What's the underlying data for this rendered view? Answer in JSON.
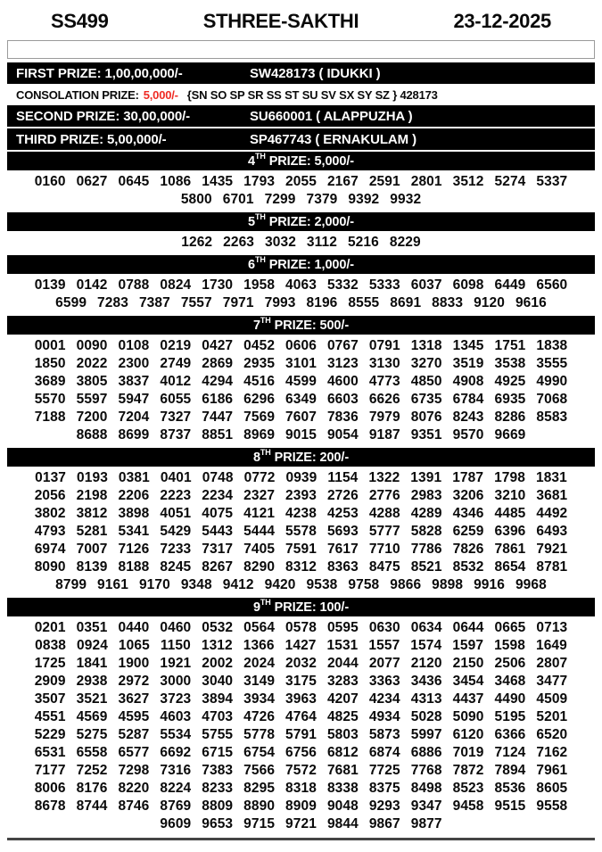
{
  "header": {
    "draw_code": "SS499",
    "title": "STHREE-SAKTHI",
    "date": "23-12-2025"
  },
  "blank_field": {
    "value": ""
  },
  "colors": {
    "bar_background": "#000000",
    "bar_text": "#ffffff",
    "consolation_amount_red": "#ef2b24"
  },
  "top_prizes": [
    {
      "label": "FIRST PRIZE: 1,00,00,000/-",
      "winner": "SW428173 ( IDUKKI )"
    },
    {
      "label": "SECOND PRIZE: 30,00,000/-",
      "winner": "SU660001 ( ALAPPUZHA )"
    },
    {
      "label": "THIRD PRIZE: 5,00,000/-",
      "winner": "SP467743 ( ERNAKULAM )"
    }
  ],
  "consolation": {
    "label": "CONSOLATION PRIZE:",
    "amount": "5,000/-",
    "series": "{SN SO SP SR SS ST SU SV SX SY SZ } 428173"
  },
  "sections": [
    {
      "ordinal": "4",
      "suffix": "TH",
      "rest": " PRIZE: 5,000/-",
      "rows": [
        [
          "0160",
          "0627",
          "0645",
          "1086",
          "1435",
          "1793",
          "2055",
          "2167",
          "2591",
          "2801",
          "3512",
          "5274",
          "5337"
        ],
        [
          "5800",
          "6701",
          "7299",
          "7379",
          "9392",
          "9932"
        ]
      ]
    },
    {
      "ordinal": "5",
      "suffix": "TH",
      "rest": " PRIZE: 2,000/-",
      "rows": [
        [
          "1262",
          "2263",
          "3032",
          "3112",
          "5216",
          "8229"
        ]
      ]
    },
    {
      "ordinal": "6",
      "suffix": "TH",
      "rest": " PRIZE: 1,000/-",
      "rows": [
        [
          "0139",
          "0142",
          "0788",
          "0824",
          "1730",
          "1958",
          "4063",
          "5332",
          "5333",
          "6037",
          "6098",
          "6449",
          "6560"
        ],
        [
          "6599",
          "7283",
          "7387",
          "7557",
          "7971",
          "7993",
          "8196",
          "8555",
          "8691",
          "8833",
          "9120",
          "9616"
        ]
      ]
    },
    {
      "ordinal": "7",
      "suffix": "TH",
      "rest": " PRIZE: 500/-",
      "rows": [
        [
          "0001",
          "0090",
          "0108",
          "0219",
          "0427",
          "0452",
          "0606",
          "0767",
          "0791",
          "1318",
          "1345",
          "1751",
          "1838"
        ],
        [
          "1850",
          "2022",
          "2300",
          "2749",
          "2869",
          "2935",
          "3101",
          "3123",
          "3130",
          "3270",
          "3519",
          "3538",
          "3555"
        ],
        [
          "3689",
          "3805",
          "3837",
          "4012",
          "4294",
          "4516",
          "4599",
          "4600",
          "4773",
          "4850",
          "4908",
          "4925",
          "4990"
        ],
        [
          "5570",
          "5597",
          "5947",
          "6055",
          "6186",
          "6296",
          "6349",
          "6603",
          "6626",
          "6735",
          "6784",
          "6935",
          "7068"
        ],
        [
          "7188",
          "7200",
          "7204",
          "7327",
          "7447",
          "7569",
          "7607",
          "7836",
          "7979",
          "8076",
          "8243",
          "8286",
          "8583"
        ],
        [
          "8688",
          "8699",
          "8737",
          "8851",
          "8969",
          "9015",
          "9054",
          "9187",
          "9351",
          "9570",
          "9669"
        ]
      ]
    },
    {
      "ordinal": "8",
      "suffix": "TH",
      "rest": " PRIZE: 200/-",
      "rows": [
        [
          "0137",
          "0193",
          "0381",
          "0401",
          "0748",
          "0772",
          "0939",
          "1154",
          "1322",
          "1391",
          "1787",
          "1798",
          "1831"
        ],
        [
          "2056",
          "2198",
          "2206",
          "2223",
          "2234",
          "2327",
          "2393",
          "2726",
          "2776",
          "2983",
          "3206",
          "3210",
          "3681"
        ],
        [
          "3802",
          "3812",
          "3898",
          "4051",
          "4075",
          "4121",
          "4238",
          "4253",
          "4288",
          "4289",
          "4346",
          "4485",
          "4492"
        ],
        [
          "4793",
          "5281",
          "5341",
          "5429",
          "5443",
          "5444",
          "5578",
          "5693",
          "5777",
          "5828",
          "6259",
          "6396",
          "6493"
        ],
        [
          "6974",
          "7007",
          "7126",
          "7233",
          "7317",
          "7405",
          "7591",
          "7617",
          "7710",
          "7786",
          "7826",
          "7861",
          "7921"
        ],
        [
          "8090",
          "8139",
          "8188",
          "8245",
          "8267",
          "8290",
          "8312",
          "8363",
          "8475",
          "8521",
          "8532",
          "8654",
          "8781"
        ],
        [
          "8799",
          "9161",
          "9170",
          "9348",
          "9412",
          "9420",
          "9538",
          "9758",
          "9866",
          "9898",
          "9916",
          "9968"
        ]
      ]
    },
    {
      "ordinal": "9",
      "suffix": "TH",
      "rest": " PRIZE: 100/-",
      "rows": [
        [
          "0201",
          "0351",
          "0440",
          "0460",
          "0532",
          "0564",
          "0578",
          "0595",
          "0630",
          "0634",
          "0644",
          "0665",
          "0713"
        ],
        [
          "0838",
          "0924",
          "1065",
          "1150",
          "1312",
          "1366",
          "1427",
          "1531",
          "1557",
          "1574",
          "1597",
          "1598",
          "1649"
        ],
        [
          "1725",
          "1841",
          "1900",
          "1921",
          "2002",
          "2024",
          "2032",
          "2044",
          "2077",
          "2120",
          "2150",
          "2506",
          "2807"
        ],
        [
          "2909",
          "2938",
          "2972",
          "3000",
          "3040",
          "3149",
          "3175",
          "3283",
          "3363",
          "3436",
          "3454",
          "3468",
          "3477"
        ],
        [
          "3507",
          "3521",
          "3627",
          "3723",
          "3894",
          "3934",
          "3963",
          "4207",
          "4234",
          "4313",
          "4437",
          "4490",
          "4509"
        ],
        [
          "4551",
          "4569",
          "4595",
          "4603",
          "4703",
          "4726",
          "4764",
          "4825",
          "4934",
          "5028",
          "5090",
          "5195",
          "5201"
        ],
        [
          "5229",
          "5275",
          "5287",
          "5534",
          "5755",
          "5778",
          "5791",
          "5803",
          "5873",
          "5997",
          "6120",
          "6366",
          "6520"
        ],
        [
          "6531",
          "6558",
          "6577",
          "6692",
          "6715",
          "6754",
          "6756",
          "6812",
          "6874",
          "6886",
          "7019",
          "7124",
          "7162"
        ],
        [
          "7177",
          "7252",
          "7298",
          "7316",
          "7383",
          "7566",
          "7572",
          "7681",
          "7725",
          "7768",
          "7872",
          "7894",
          "7961"
        ],
        [
          "8006",
          "8176",
          "8220",
          "8224",
          "8233",
          "8295",
          "8318",
          "8338",
          "8375",
          "8498",
          "8523",
          "8536",
          "8605"
        ],
        [
          "8678",
          "8744",
          "8746",
          "8769",
          "8809",
          "8890",
          "8909",
          "9048",
          "9293",
          "9347",
          "9458",
          "9515",
          "9558"
        ],
        [
          "9609",
          "9653",
          "9715",
          "9721",
          "9844",
          "9867",
          "9877"
        ]
      ]
    }
  ]
}
